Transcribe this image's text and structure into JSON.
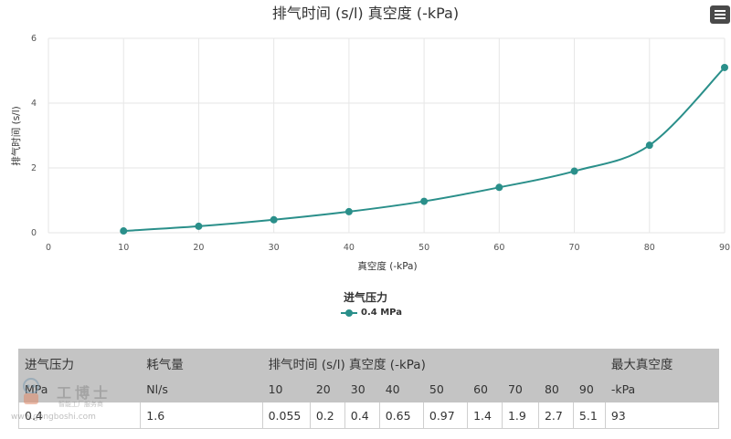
{
  "chart_data": {
    "type": "line",
    "title": "排气时间 (s/l) 真空度 (-kPa)",
    "xlabel": "真空度 (-kPa)",
    "ylabel": "排气时间 (s/l)",
    "xlim": [
      0,
      90
    ],
    "ylim": [
      0,
      6
    ],
    "x_ticks": [
      0,
      10,
      20,
      30,
      40,
      50,
      60,
      70,
      80,
      90
    ],
    "y_ticks": [
      0,
      2,
      4,
      6
    ],
    "grid": true,
    "legend_title": "进气压力",
    "legend_position": "bottom-center",
    "series": [
      {
        "name": "0.4 MPa",
        "color": "#2a8f8a",
        "x": [
          10,
          20,
          30,
          40,
          50,
          60,
          70,
          80,
          90
        ],
        "y": [
          0.055,
          0.2,
          0.4,
          0.65,
          0.97,
          1.4,
          1.9,
          2.7,
          5.1
        ]
      }
    ]
  },
  "menu_icon": "hamburger-menu-icon",
  "table": {
    "header1": [
      "进气压力",
      "耗气量",
      "排气时间 (s/l) 真空度 (-kPa)",
      "最大真空度"
    ],
    "header2": [
      "MPa",
      "Nl/s",
      "10",
      "20",
      "30",
      "40",
      "50",
      "60",
      "70",
      "80",
      "90",
      "-kPa"
    ],
    "row": [
      "0.4",
      "1.6",
      "0.055",
      "0.2",
      "0.4",
      "0.65",
      "0.97",
      "1.4",
      "1.9",
      "2.7",
      "5.1",
      "93"
    ]
  },
  "watermark": {
    "name": "工博士",
    "tagline": "智能工厂服务商",
    "url": "www.gongboshi.com"
  }
}
